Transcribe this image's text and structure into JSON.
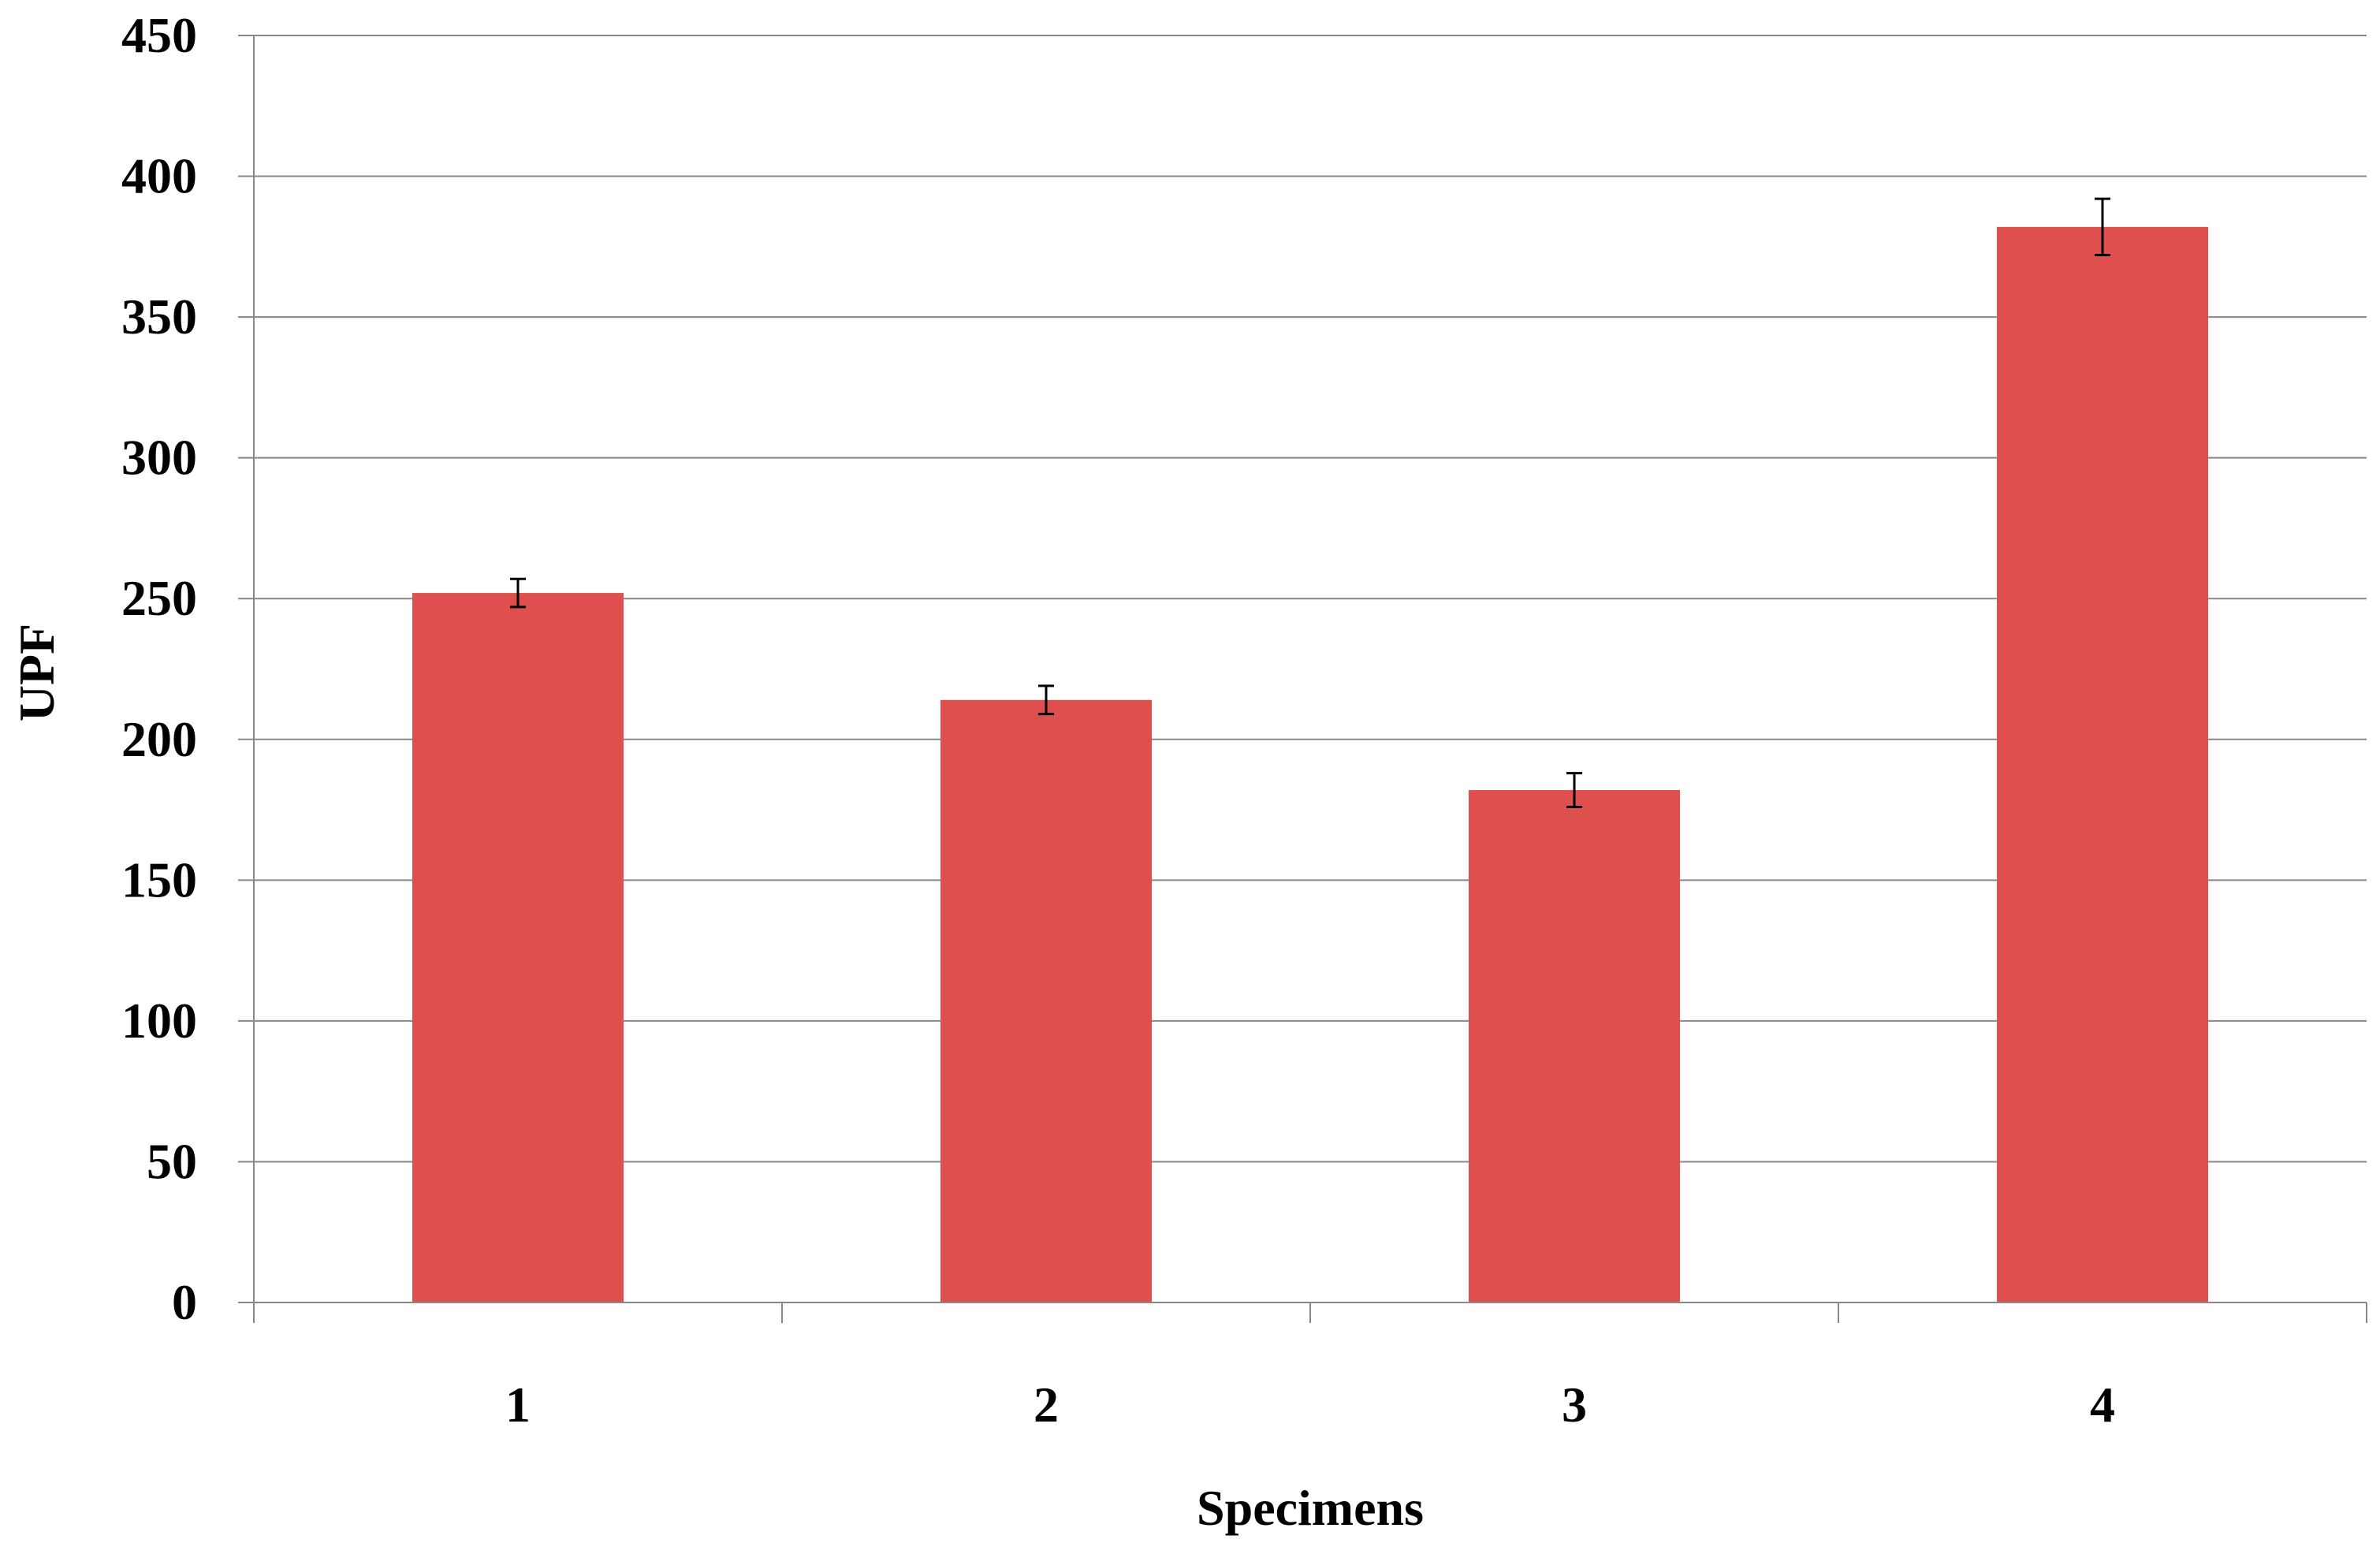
{
  "chart_data": {
    "type": "bar",
    "categories": [
      "1",
      "2",
      "3",
      "4"
    ],
    "values": [
      252,
      214,
      182,
      382
    ],
    "error": [
      5,
      5,
      6,
      10
    ],
    "title": "",
    "xlabel": "Specimens",
    "ylabel": "UPF",
    "ylim": [
      0,
      450
    ],
    "yticks": [
      "0",
      "50",
      "100",
      "150",
      "200",
      "250",
      "300",
      "350",
      "400",
      "450"
    ],
    "grid": true,
    "legend": "none",
    "colors": {
      "bar": "#DE4F4D",
      "grid": "#888888",
      "axis": "#888888",
      "error_bar": "#000000"
    }
  }
}
